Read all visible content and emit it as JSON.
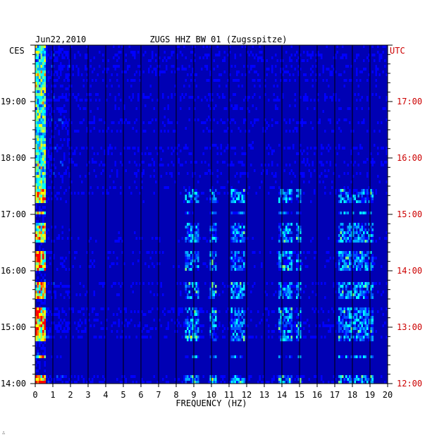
{
  "header": {
    "date": "Jun22,2010",
    "station": "ZUGS HHZ BW 01 (Zugsspitze)",
    "left_zone": "CES",
    "right_zone": "UTC"
  },
  "footer": {
    "mark": "∴"
  },
  "colors": {
    "background": "#0000b4",
    "axis_text": "#000000",
    "utc_text": "#cc0000",
    "grid": "#000000",
    "palette": [
      "#00008f",
      "#0000c8",
      "#0000ff",
      "#0050ff",
      "#00a8ff",
      "#00ffff",
      "#80ff80",
      "#ffff00",
      "#ff8000",
      "#ff0000"
    ]
  },
  "chart_data": {
    "type": "heatmap",
    "title": "ZUGS HHZ BW 01 (Zugsspitze)",
    "date": "Jun22,2010",
    "xlabel": "FREQUENCY (HZ)",
    "xlim": [
      0,
      20
    ],
    "x_ticks": [
      "0",
      "1",
      "2",
      "3",
      "4",
      "5",
      "6",
      "7",
      "8",
      "9",
      "10",
      "11",
      "12",
      "13",
      "14",
      "15",
      "16",
      "17",
      "18",
      "19",
      "20"
    ],
    "y_left_label": "CES",
    "y_right_label": "UTC",
    "y_left_ticks": [
      "19:00",
      "18:00",
      "17:00",
      "16:00",
      "15:00",
      "14:00"
    ],
    "y_right_ticks": [
      "17:00",
      "16:00",
      "15:00",
      "14:00",
      "13:00",
      "12:00"
    ],
    "y_tick_hours_from_top": [
      1,
      2,
      3,
      4,
      5,
      6
    ],
    "time_span_hours": 6,
    "grid": true,
    "notable_bands_hz": [
      {
        "from": 0,
        "to": 0.6,
        "note": "strong low-frequency energy"
      },
      {
        "from": 8.5,
        "to": 9.3
      },
      {
        "from": 9.9,
        "to": 10.3
      },
      {
        "from": 11.1,
        "to": 11.9
      },
      {
        "from": 13.8,
        "to": 14.6
      },
      {
        "from": 14.8,
        "to": 15.1
      },
      {
        "from": 17.2,
        "to": 19.2
      }
    ],
    "dark_rows_hours_from_top": [
      2.85,
      3.05,
      3.55,
      4.05,
      4.1,
      4.55,
      5.3,
      5.4,
      5.6,
      5.75
    ]
  }
}
